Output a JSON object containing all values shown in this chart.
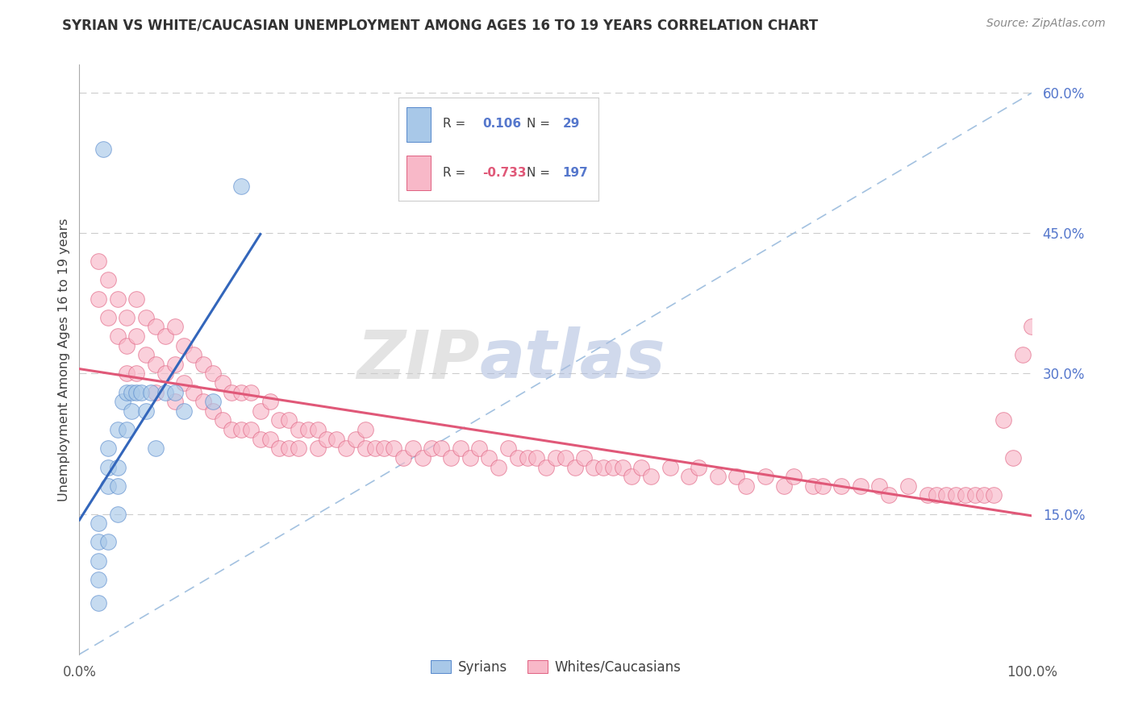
{
  "title": "SYRIAN VS WHITE/CAUCASIAN UNEMPLOYMENT AMONG AGES 16 TO 19 YEARS CORRELATION CHART",
  "source": "Source: ZipAtlas.com",
  "ylabel": "Unemployment Among Ages 16 to 19 years",
  "legend_blue_r": "0.106",
  "legend_blue_n": "29",
  "legend_pink_r": "-0.733",
  "legend_pink_n": "197",
  "legend_label_blue": "Syrians",
  "legend_label_pink": "Whites/Caucasians",
  "blue_fill": "#a8c8e8",
  "blue_edge": "#5588cc",
  "pink_fill": "#f8b8c8",
  "pink_edge": "#e06080",
  "trend_blue_color": "#3366bb",
  "trend_pink_color": "#e05878",
  "diag_color": "#99bbdd",
  "watermark_zip_color": "#cccccc",
  "watermark_atlas_color": "#aabbdd",
  "background_color": "#ffffff",
  "title_color": "#333333",
  "source_color": "#888888",
  "tick_color": "#5577cc",
  "legend_text_color": "#404040",
  "xlim": [
    0.0,
    1.0
  ],
  "ylim": [
    0.0,
    0.63
  ],
  "yticks": [
    0.15,
    0.3,
    0.45,
    0.6
  ],
  "ytick_labels": [
    "15.0%",
    "30.0%",
    "45.0%",
    "60.0%"
  ],
  "syrians_x": [
    0.02,
    0.02,
    0.02,
    0.02,
    0.02,
    0.025,
    0.03,
    0.03,
    0.03,
    0.03,
    0.04,
    0.04,
    0.04,
    0.04,
    0.045,
    0.05,
    0.05,
    0.055,
    0.055,
    0.06,
    0.065,
    0.07,
    0.075,
    0.08,
    0.09,
    0.1,
    0.11,
    0.14,
    0.17
  ],
  "syrians_y": [
    0.055,
    0.08,
    0.1,
    0.12,
    0.14,
    0.54,
    0.12,
    0.18,
    0.2,
    0.22,
    0.24,
    0.2,
    0.18,
    0.15,
    0.27,
    0.28,
    0.24,
    0.28,
    0.26,
    0.28,
    0.28,
    0.26,
    0.28,
    0.22,
    0.28,
    0.28,
    0.26,
    0.27,
    0.5
  ],
  "whites_x": [
    0.02,
    0.02,
    0.03,
    0.03,
    0.04,
    0.04,
    0.05,
    0.05,
    0.05,
    0.06,
    0.06,
    0.06,
    0.07,
    0.07,
    0.08,
    0.08,
    0.08,
    0.09,
    0.09,
    0.1,
    0.1,
    0.1,
    0.11,
    0.11,
    0.12,
    0.12,
    0.13,
    0.13,
    0.14,
    0.14,
    0.15,
    0.15,
    0.16,
    0.16,
    0.17,
    0.17,
    0.18,
    0.18,
    0.19,
    0.19,
    0.2,
    0.2,
    0.21,
    0.21,
    0.22,
    0.22,
    0.23,
    0.23,
    0.24,
    0.25,
    0.25,
    0.26,
    0.27,
    0.28,
    0.29,
    0.3,
    0.3,
    0.31,
    0.32,
    0.33,
    0.34,
    0.35,
    0.36,
    0.37,
    0.38,
    0.39,
    0.4,
    0.41,
    0.42,
    0.43,
    0.44,
    0.45,
    0.46,
    0.47,
    0.48,
    0.49,
    0.5,
    0.51,
    0.52,
    0.53,
    0.54,
    0.55,
    0.56,
    0.57,
    0.58,
    0.59,
    0.6,
    0.62,
    0.64,
    0.65,
    0.67,
    0.69,
    0.7,
    0.72,
    0.74,
    0.75,
    0.77,
    0.78,
    0.8,
    0.82,
    0.84,
    0.85,
    0.87,
    0.89,
    0.9,
    0.91,
    0.92,
    0.93,
    0.94,
    0.95,
    0.96,
    0.97,
    0.98,
    0.99,
    1.0
  ],
  "whites_y": [
    0.42,
    0.38,
    0.4,
    0.36,
    0.38,
    0.34,
    0.36,
    0.33,
    0.3,
    0.38,
    0.34,
    0.3,
    0.36,
    0.32,
    0.35,
    0.31,
    0.28,
    0.34,
    0.3,
    0.35,
    0.31,
    0.27,
    0.33,
    0.29,
    0.32,
    0.28,
    0.31,
    0.27,
    0.3,
    0.26,
    0.29,
    0.25,
    0.28,
    0.24,
    0.28,
    0.24,
    0.28,
    0.24,
    0.26,
    0.23,
    0.27,
    0.23,
    0.25,
    0.22,
    0.25,
    0.22,
    0.24,
    0.22,
    0.24,
    0.24,
    0.22,
    0.23,
    0.23,
    0.22,
    0.23,
    0.24,
    0.22,
    0.22,
    0.22,
    0.22,
    0.21,
    0.22,
    0.21,
    0.22,
    0.22,
    0.21,
    0.22,
    0.21,
    0.22,
    0.21,
    0.2,
    0.22,
    0.21,
    0.21,
    0.21,
    0.2,
    0.21,
    0.21,
    0.2,
    0.21,
    0.2,
    0.2,
    0.2,
    0.2,
    0.19,
    0.2,
    0.19,
    0.2,
    0.19,
    0.2,
    0.19,
    0.19,
    0.18,
    0.19,
    0.18,
    0.19,
    0.18,
    0.18,
    0.18,
    0.18,
    0.18,
    0.17,
    0.18,
    0.17,
    0.17,
    0.17,
    0.17,
    0.17,
    0.17,
    0.17,
    0.17,
    0.25,
    0.21,
    0.32,
    0.35
  ]
}
